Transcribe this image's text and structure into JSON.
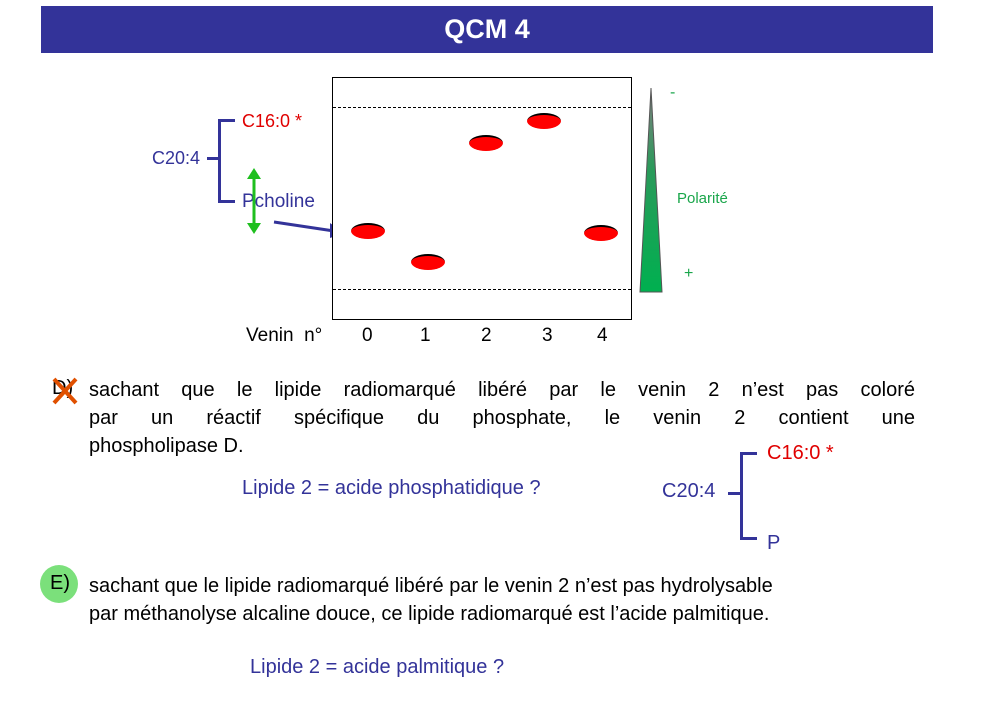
{
  "header": {
    "title": "QCM 4"
  },
  "diagram": {
    "top_molecule": {
      "chain_main": "C20:4",
      "chain_top": "C16:0 *",
      "head": "Pcholine"
    },
    "polarity": {
      "label": "Polarité",
      "minus": "-",
      "plus": "+"
    },
    "lanes": {
      "label": "Venin  n°",
      "numbers": [
        "0",
        "1",
        "2",
        "3",
        "4"
      ]
    }
  },
  "questions": {
    "d": {
      "marker": "D)",
      "line1": "sachant que le lipide radiomarqué libéré par le venin 2 n’est pas coloré",
      "line2": "par un réactif spécifique du phosphate, le venin 2 contient une",
      "line3": "phospholipase D.",
      "hypothesis": "Lipide 2 = acide phosphatidique ?",
      "molecule": {
        "chain_main": "C20:4",
        "chain_top": "C16:0 *",
        "head": "P"
      }
    },
    "e": {
      "marker": "E)",
      "line1": "sachant que le lipide radiomarqué libéré par le venin 2 n’est pas hydrolysable",
      "line2": "par méthanolyse alcaline douce, ce lipide radiomarqué est  l’acide palmitique.",
      "hypothesis": "Lipide 2 = acide palmitique ?"
    }
  },
  "colors": {
    "title_bar": "#333399",
    "molecule_blue": "#333399",
    "radiolabel_red": "#e00000",
    "polarity_green": "#1aa64b",
    "correct_marker": "#7be07b",
    "wrong_marker": "#e05000"
  }
}
